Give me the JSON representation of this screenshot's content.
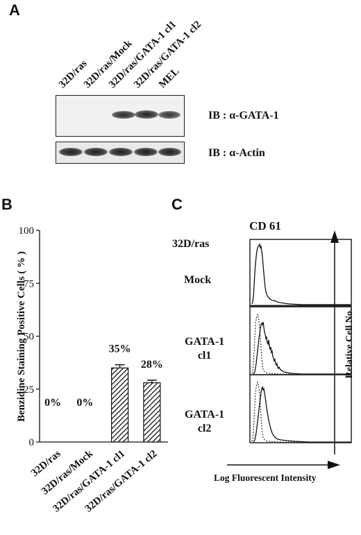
{
  "panel_a": {
    "letter": "A",
    "lanes": [
      "32D/ras",
      "32D/ras/Mock",
      "32D/ras/GATA-1 cl1",
      "32D/ras/GATA-1 cl2",
      "MEL"
    ],
    "blot_top_label": "IB : α-GATA-1",
    "blot_bottom_label": "IB : α-Actin"
  },
  "panel_b": {
    "letter": "B"
  },
  "panel_c": {
    "letter": "C",
    "title": "CD 61",
    "row_labels": {
      "r0": "32D/ras",
      "r1": "Mock",
      "r2_line1": "GATA-1",
      "r2_line2": "cl1",
      "r3_line1": "GATA-1",
      "r3_line2": "cl2"
    },
    "ylabel": "Relative Cell No.",
    "xlabel": "Log Fluorescent Intensity"
  },
  "chart_data": {
    "type": "bar",
    "categories": [
      "32D/ras",
      "32D/ras/Mock",
      "32D/ras/GATA-1 cl1",
      "32D/ras/GATA-1 cl2"
    ],
    "values": [
      0,
      0,
      35,
      28
    ],
    "error": [
      0,
      0,
      1.5,
      1.2
    ],
    "data_labels": [
      "0%",
      "0%",
      "35%",
      "28%"
    ],
    "ylabel": "Benzidine Staining Positive Cells ( % )",
    "yticks": [
      0,
      25,
      50,
      75,
      100
    ],
    "ylim": [
      0,
      100
    ],
    "bar_fill": "hatched"
  }
}
